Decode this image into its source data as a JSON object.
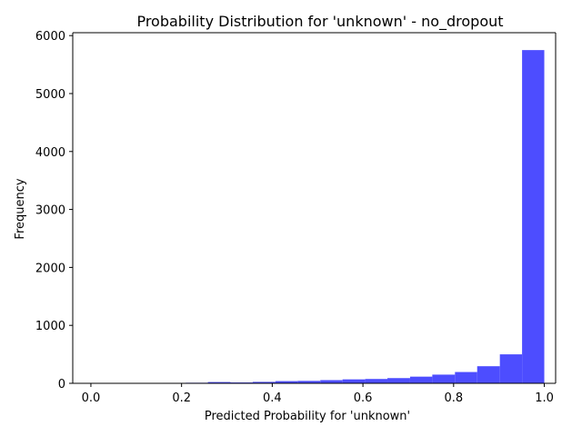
{
  "chart_data": {
    "type": "bar",
    "title": "Probability Distribution for 'unknown' - no_dropout",
    "xlabel": "Predicted Probability for 'unknown'",
    "ylabel": "Frequency",
    "xlim": [
      -0.04,
      1.025
    ],
    "ylim": [
      0,
      6050
    ],
    "x_ticks": [
      0.0,
      0.2,
      0.4,
      0.6,
      0.8,
      1.0
    ],
    "x_tick_labels": [
      "0.0",
      "0.2",
      "0.4",
      "0.6",
      "0.8",
      "1.0"
    ],
    "y_ticks": [
      0,
      1000,
      2000,
      3000,
      4000,
      5000,
      6000
    ],
    "y_tick_labels": [
      "0",
      "1000",
      "2000",
      "3000",
      "4000",
      "5000",
      "6000"
    ],
    "grid": false,
    "bar_color": "#4d4dff",
    "bins": [
      {
        "x0": 0.011,
        "x1": 0.06,
        "count": 5
      },
      {
        "x0": 0.06,
        "x1": 0.11,
        "count": 5
      },
      {
        "x0": 0.11,
        "x1": 0.159,
        "count": 6
      },
      {
        "x0": 0.159,
        "x1": 0.209,
        "count": 8
      },
      {
        "x0": 0.209,
        "x1": 0.258,
        "count": 10
      },
      {
        "x0": 0.258,
        "x1": 0.308,
        "count": 22
      },
      {
        "x0": 0.308,
        "x1": 0.357,
        "count": 15
      },
      {
        "x0": 0.357,
        "x1": 0.407,
        "count": 25
      },
      {
        "x0": 0.407,
        "x1": 0.456,
        "count": 38
      },
      {
        "x0": 0.456,
        "x1": 0.506,
        "count": 42
      },
      {
        "x0": 0.506,
        "x1": 0.555,
        "count": 55
      },
      {
        "x0": 0.555,
        "x1": 0.605,
        "count": 68
      },
      {
        "x0": 0.605,
        "x1": 0.654,
        "count": 75
      },
      {
        "x0": 0.654,
        "x1": 0.704,
        "count": 90
      },
      {
        "x0": 0.704,
        "x1": 0.753,
        "count": 115
      },
      {
        "x0": 0.753,
        "x1": 0.803,
        "count": 150
      },
      {
        "x0": 0.803,
        "x1": 0.852,
        "count": 195
      },
      {
        "x0": 0.852,
        "x1": 0.902,
        "count": 295
      },
      {
        "x0": 0.902,
        "x1": 0.951,
        "count": 500
      },
      {
        "x0": 0.951,
        "x1": 1.0,
        "count": 5750
      }
    ]
  }
}
